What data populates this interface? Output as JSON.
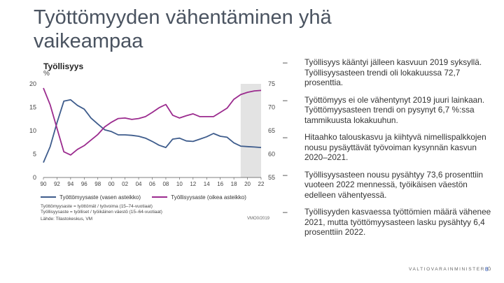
{
  "slide": {
    "title": "Työttömyyden vähentäminen yhä vaikeampaa",
    "page_number": "8",
    "footer_logo": "VALTIOVARAINMINISTERIÖ"
  },
  "bullets": [
    {
      "dash": "–",
      "text": "Työllisyys kääntyi jälleen kasvuun 2019 syksyllä. Työllisyysasteen trendi oli lokakuussa 72,7 prosenttia."
    },
    {
      "dash": "–",
      "text": "Työttömyys ei ole vähentynyt 2019 juuri lainkaan. Työttömyysasteen trendi on pysynyt 6,7 %:ssa tammikuusta lokakuuhun."
    },
    {
      "dash": "–",
      "text": "Hitaahko talouskasvu ja kiihtyvä nimellispalkkojen nousu pysäyttävät työvoiman kysynnän kasvun 2020–2021."
    },
    {
      "dash": "–",
      "text": "Työllisyysasteen nousu pysähtyy 73,6 prosenttiin vuoteen 2022 mennessä, työikäisen väestön edelleen vähentyessä."
    },
    {
      "dash": "–",
      "text": "Työllisyyden kasvaessa työttömien määrä vähenee 2021, mutta työttömyysasteen lasku pysähtyy 6,4 prosenttiin 2022."
    }
  ],
  "chart_data": {
    "type": "line",
    "title": "Työllisyys",
    "unit_label": "%",
    "notes": [
      "Työttömyysaste = työttömät / työvoima (15–74-vuotiaat)",
      "Työllisyysaste = työlliset / työikäinen väestö (15–64-vuotiaat)"
    ],
    "source": "Lähde: Tilastokeskus, VM",
    "code": "VMO0/2019",
    "x_ticks": [
      "90",
      "92",
      "94",
      "96",
      "98",
      "00",
      "02",
      "04",
      "06",
      "08",
      "10",
      "12",
      "14",
      "16",
      "18",
      "20",
      "22"
    ],
    "xlim": [
      1990,
      2022
    ],
    "forecast_start": 2019,
    "forecast_color": "#e3e3e3",
    "left_axis": {
      "ylim": [
        0,
        20
      ],
      "ticks": [
        "0",
        "5",
        "10",
        "15",
        "20"
      ]
    },
    "right_axis": {
      "ylim": [
        55,
        75
      ],
      "ticks": [
        "55",
        "60",
        "65",
        "70",
        "75"
      ]
    },
    "series": [
      {
        "name": "Työttömyysaste (vasen asteikko)",
        "axis": "left",
        "color": "#3e5c8c",
        "x": [
          1990,
          1991,
          1992,
          1993,
          1994,
          1995,
          1996,
          1997,
          1998,
          1999,
          2000,
          2001,
          2002,
          2003,
          2004,
          2005,
          2006,
          2007,
          2008,
          2009,
          2010,
          2011,
          2012,
          2013,
          2014,
          2015,
          2016,
          2017,
          2018,
          2019,
          2020,
          2021,
          2022
        ],
        "values": [
          3.2,
          6.6,
          11.7,
          16.3,
          16.6,
          15.4,
          14.6,
          12.7,
          11.4,
          10.2,
          9.8,
          9.1,
          9.1,
          9.0,
          8.8,
          8.4,
          7.7,
          6.9,
          6.4,
          8.2,
          8.4,
          7.8,
          7.7,
          8.2,
          8.7,
          9.4,
          8.8,
          8.6,
          7.4,
          6.7,
          6.6,
          6.5,
          6.4
        ]
      },
      {
        "name": "Työllisyysaste (oikea asteikko)",
        "axis": "right",
        "color": "#9b2b8e",
        "x": [
          1990,
          1991,
          1992,
          1993,
          1994,
          1995,
          1996,
          1997,
          1998,
          1999,
          2000,
          2001,
          2002,
          2003,
          2004,
          2005,
          2006,
          2007,
          2008,
          2009,
          2010,
          2011,
          2012,
          2013,
          2014,
          2015,
          2016,
          2017,
          2018,
          2019,
          2020,
          2021,
          2022
        ],
        "values": [
          74.1,
          70.5,
          65.5,
          60.5,
          59.8,
          61.0,
          61.8,
          63.0,
          64.2,
          65.8,
          66.8,
          67.6,
          67.7,
          67.4,
          67.6,
          68.0,
          68.9,
          69.9,
          70.6,
          68.3,
          67.7,
          68.2,
          68.6,
          68.0,
          68.0,
          68.0,
          68.9,
          69.8,
          71.7,
          72.7,
          73.2,
          73.5,
          73.6
        ]
      }
    ]
  }
}
